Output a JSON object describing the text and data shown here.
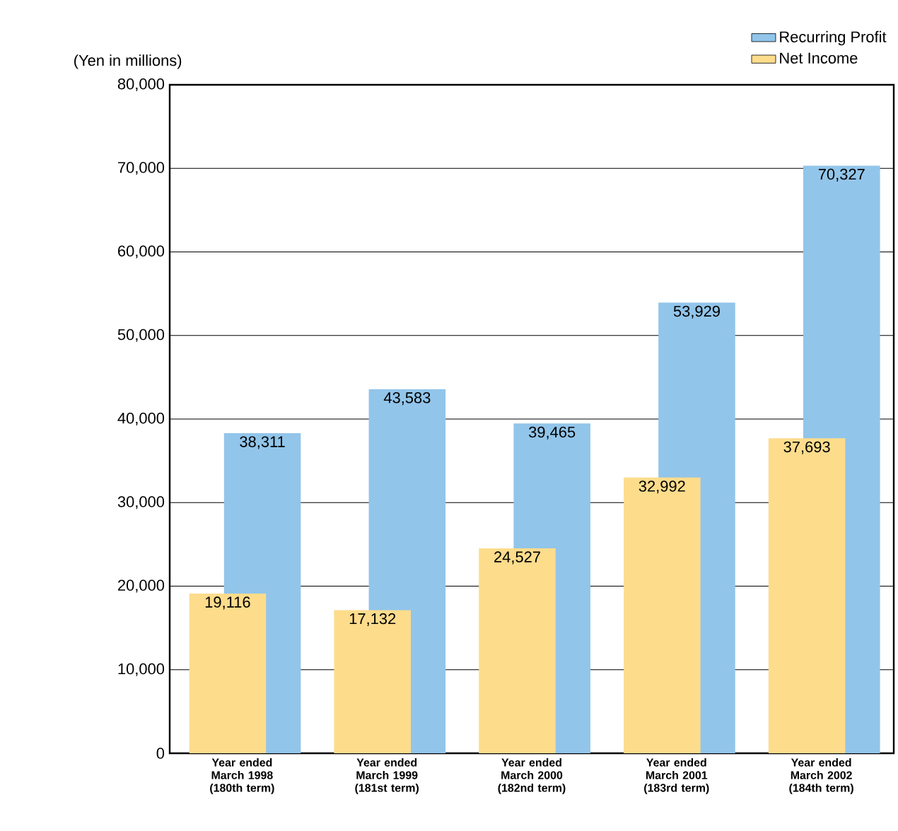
{
  "chart_data": {
    "type": "bar",
    "ylabel": "(Yen in millions)",
    "categories": [
      "Year ended March 1998 (180th term)",
      "Year ended March 1999 (181st term)",
      "Year ended March 2000 (182nd term)",
      "Year ended March 2001 (183rd term)",
      "Year ended March 2002 (184th term)"
    ],
    "series": [
      {
        "name": "Recurring Profit",
        "color": "#92c5ea",
        "values": [
          38311,
          43583,
          39465,
          53929,
          70327
        ],
        "value_labels": [
          "38,311",
          "43,583",
          "39,465",
          "53,929",
          "70,327"
        ]
      },
      {
        "name": "Net Income",
        "color": "#fddc8c",
        "values": [
          19116,
          17132,
          24527,
          32992,
          37693
        ],
        "value_labels": [
          "19,116",
          "17,132",
          "24,527",
          "32,992",
          "37,693"
        ]
      }
    ],
    "ylim": [
      0,
      80000
    ],
    "yticks": [
      0,
      {
        "value": 10000,
        "label": "10,000"
      },
      {
        "value": 20000,
        "label": "20,000"
      },
      {
        "value": 30000,
        "label": "30,000"
      },
      {
        "value": 40000,
        "label": "40,000"
      },
      {
        "value": 50000,
        "label": "50,000"
      },
      {
        "value": 60000,
        "label": "60,000"
      },
      {
        "value": 70000,
        "label": "70,000"
      },
      {
        "value": 80000,
        "label": "80,000"
      }
    ],
    "grid": "y",
    "legend": "top right"
  }
}
